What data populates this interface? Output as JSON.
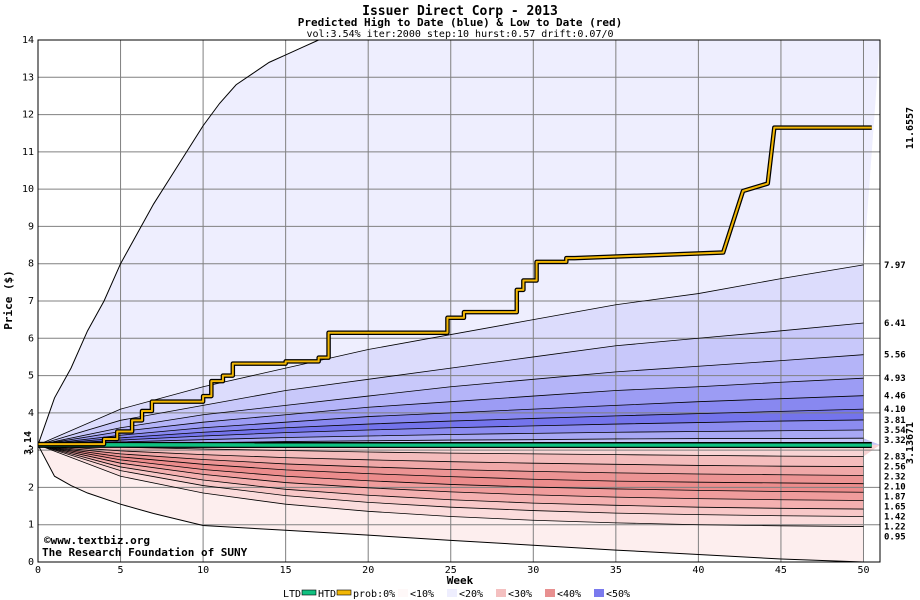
{
  "header": {
    "title": "Issuer Direct Corp - 2013",
    "subtitle": "Predicted High to Date (blue) &  Low to Date (red)",
    "params": "vol:3.54% iter:2000 step:10 hurst:0.57 drift:0.07/0"
  },
  "watermark": {
    "line1": "©www.textbiz.org",
    "line2": "The Research Foundation of SUNY"
  },
  "legend": {
    "ltd": "LTD",
    "htd": "HTD",
    "prob": "prob:0%",
    "b1": "<10%",
    "b2": "<20%",
    "b3": "<30%",
    "b4": "<40%",
    "b5": "<50%"
  },
  "colors": {
    "high_band": "#eeeefe",
    "low_band": "#fdeeee",
    "htd_line": "#f2b705",
    "ltd_line": "#10c080",
    "right_high_label": "#a07800",
    "right_low_label": "#10a070",
    "start_label": "#107010"
  },
  "chart_data": {
    "type": "area",
    "xlabel": "Week",
    "ylabel": "Price ($)",
    "xlim": [
      0,
      51
    ],
    "ylim": [
      0,
      14
    ],
    "x_ticks": [
      0,
      5,
      10,
      15,
      20,
      25,
      30,
      35,
      40,
      45,
      50
    ],
    "y_ticks": [
      0,
      1,
      2,
      3,
      4,
      5,
      6,
      7,
      8,
      9,
      10,
      11,
      12,
      13,
      14
    ],
    "grid": true,
    "start_value": "3.14",
    "htd_final": "11.6557",
    "ltd_final": "3.13671",
    "high_quantile_labels": [
      "7.97",
      "6.41",
      "5.56",
      "4.93",
      "4.46",
      "4.10",
      "3.81",
      "3.54",
      "3.32"
    ],
    "low_quantile_labels": [
      "2.83",
      "2.56",
      "2.32",
      "2.10",
      "1.87",
      "1.65",
      "1.42",
      "1.22",
      "0.95"
    ],
    "high_outer_envelope": {
      "x": [
        0,
        1,
        2,
        3,
        4,
        5,
        6,
        7,
        8,
        9,
        10,
        11,
        12,
        13,
        14,
        15,
        16,
        17
      ],
      "y": [
        3.14,
        4.4,
        5.2,
        6.2,
        7.0,
        8.0,
        8.8,
        9.6,
        10.3,
        11.0,
        11.7,
        12.3,
        12.8,
        13.1,
        13.4,
        13.6,
        13.8,
        14.0
      ]
    },
    "high_quantile_curves": [
      {
        "end": 7.97,
        "x": [
          0,
          5,
          10,
          15,
          20,
          25,
          30,
          35,
          40,
          45,
          50
        ],
        "y": [
          3.14,
          4.1,
          4.7,
          5.2,
          5.7,
          6.1,
          6.5,
          6.9,
          7.2,
          7.6,
          7.97
        ]
      },
      {
        "end": 6.41,
        "x": [
          0,
          5,
          10,
          15,
          20,
          25,
          30,
          35,
          40,
          45,
          50
        ],
        "y": [
          3.14,
          3.8,
          4.2,
          4.6,
          4.9,
          5.2,
          5.5,
          5.8,
          6.0,
          6.2,
          6.41
        ]
      },
      {
        "end": 5.56,
        "x": [
          0,
          5,
          10,
          15,
          20,
          25,
          30,
          35,
          40,
          45,
          50
        ],
        "y": [
          3.14,
          3.6,
          3.95,
          4.2,
          4.45,
          4.7,
          4.9,
          5.1,
          5.25,
          5.4,
          5.56
        ]
      },
      {
        "end": 4.93,
        "x": [
          0,
          5,
          10,
          15,
          20,
          25,
          30,
          35,
          40,
          45,
          50
        ],
        "y": [
          3.14,
          3.5,
          3.75,
          3.95,
          4.15,
          4.3,
          4.45,
          4.6,
          4.7,
          4.82,
          4.93
        ]
      },
      {
        "end": 4.46,
        "x": [
          0,
          5,
          10,
          15,
          20,
          25,
          30,
          35,
          40,
          45,
          50
        ],
        "y": [
          3.14,
          3.4,
          3.6,
          3.75,
          3.9,
          4.0,
          4.1,
          4.2,
          4.3,
          4.38,
          4.46
        ]
      },
      {
        "end": 4.1,
        "x": [
          0,
          5,
          10,
          15,
          20,
          25,
          30,
          35,
          40,
          45,
          50
        ],
        "y": [
          3.14,
          3.33,
          3.48,
          3.6,
          3.7,
          3.78,
          3.85,
          3.92,
          3.98,
          4.04,
          4.1
        ]
      },
      {
        "end": 3.81,
        "x": [
          0,
          5,
          10,
          15,
          20,
          25,
          30,
          35,
          40,
          45,
          50
        ],
        "y": [
          3.14,
          3.27,
          3.38,
          3.47,
          3.54,
          3.6,
          3.65,
          3.7,
          3.74,
          3.78,
          3.81
        ]
      },
      {
        "end": 3.54,
        "x": [
          0,
          5,
          10,
          15,
          20,
          25,
          30,
          35,
          40,
          45,
          50
        ],
        "y": [
          3.14,
          3.22,
          3.28,
          3.34,
          3.38,
          3.42,
          3.45,
          3.48,
          3.5,
          3.52,
          3.54
        ]
      },
      {
        "end": 3.32,
        "x": [
          0,
          5,
          10,
          15,
          20,
          25,
          30,
          35,
          40,
          45,
          50
        ],
        "y": [
          3.14,
          3.17,
          3.2,
          3.23,
          3.25,
          3.27,
          3.28,
          3.3,
          3.31,
          3.31,
          3.32
        ]
      }
    ],
    "low_quantile_curves": [
      {
        "end": 2.83,
        "x": [
          0,
          5,
          10,
          15,
          20,
          25,
          30,
          35,
          40,
          45,
          50
        ],
        "y": [
          3.14,
          3.08,
          3.03,
          2.99,
          2.95,
          2.92,
          2.9,
          2.88,
          2.86,
          2.84,
          2.83
        ]
      },
      {
        "end": 2.56,
        "x": [
          0,
          5,
          10,
          15,
          20,
          25,
          30,
          35,
          40,
          45,
          50
        ],
        "y": [
          3.14,
          2.98,
          2.88,
          2.8,
          2.74,
          2.69,
          2.65,
          2.62,
          2.59,
          2.57,
          2.56
        ]
      },
      {
        "end": 2.32,
        "x": [
          0,
          5,
          10,
          15,
          20,
          25,
          30,
          35,
          40,
          45,
          50
        ],
        "y": [
          3.14,
          2.9,
          2.75,
          2.63,
          2.55,
          2.48,
          2.43,
          2.39,
          2.36,
          2.34,
          2.32
        ]
      },
      {
        "end": 2.1,
        "x": [
          0,
          5,
          10,
          15,
          20,
          25,
          30,
          35,
          40,
          45,
          50
        ],
        "y": [
          3.14,
          2.82,
          2.62,
          2.47,
          2.37,
          2.29,
          2.22,
          2.17,
          2.14,
          2.12,
          2.1
        ]
      },
      {
        "end": 1.87,
        "x": [
          0,
          5,
          10,
          15,
          20,
          25,
          30,
          35,
          40,
          45,
          50
        ],
        "y": [
          3.14,
          2.74,
          2.48,
          2.3,
          2.18,
          2.08,
          2.01,
          1.96,
          1.92,
          1.89,
          1.87
        ]
      },
      {
        "end": 1.65,
        "x": [
          0,
          5,
          10,
          15,
          20,
          25,
          30,
          35,
          40,
          45,
          50
        ],
        "y": [
          3.14,
          2.65,
          2.35,
          2.13,
          1.99,
          1.88,
          1.8,
          1.74,
          1.7,
          1.67,
          1.65
        ]
      },
      {
        "end": 1.42,
        "x": [
          0,
          5,
          10,
          15,
          20,
          25,
          30,
          35,
          40,
          45,
          50
        ],
        "y": [
          3.14,
          2.55,
          2.2,
          1.95,
          1.79,
          1.67,
          1.58,
          1.52,
          1.47,
          1.44,
          1.42
        ]
      },
      {
        "end": 1.22,
        "x": [
          0,
          5,
          10,
          15,
          20,
          25,
          30,
          35,
          40,
          45,
          50
        ],
        "y": [
          3.14,
          2.45,
          2.05,
          1.78,
          1.6,
          1.47,
          1.38,
          1.31,
          1.27,
          1.24,
          1.22
        ]
      },
      {
        "end": 0.95,
        "x": [
          0,
          5,
          10,
          15,
          20,
          25,
          30,
          35,
          40,
          45,
          50
        ],
        "y": [
          3.14,
          2.3,
          1.85,
          1.55,
          1.36,
          1.22,
          1.12,
          1.05,
          1.0,
          0.97,
          0.95
        ]
      }
    ],
    "low_outer_envelope": {
      "x": [
        0,
        1,
        2,
        3,
        5,
        7,
        10,
        15,
        20,
        25,
        30,
        35,
        40,
        45,
        50
      ],
      "y": [
        3.14,
        2.3,
        2.05,
        1.85,
        1.55,
        1.3,
        0.98,
        0.85,
        0.72,
        0.58,
        0.45,
        0.32,
        0.2,
        0.08,
        0
      ]
    },
    "series": [
      {
        "name": "HTD",
        "x": [
          0,
          4,
          4,
          4.8,
          4.8,
          5.7,
          5.7,
          6.3,
          6.3,
          6.9,
          6.9,
          10.0,
          10.0,
          10.5,
          10.5,
          11.2,
          11.2,
          11.8,
          11.8,
          15.0,
          15.0,
          17.0,
          17.0,
          17.6,
          17.6,
          24.8,
          24.8,
          25.8,
          25.8,
          29.0,
          29.0,
          29.4,
          29.4,
          30.2,
          30.2,
          32.0,
          32.0,
          32.5,
          32.5,
          41.5,
          41.5,
          42.3,
          42.3,
          42.7,
          42.7,
          44.2,
          44.2,
          44.6,
          44.6,
          50.5
        ],
        "y": [
          3.16,
          3.16,
          3.3,
          3.3,
          3.5,
          3.5,
          3.8,
          3.8,
          4.05,
          4.05,
          4.3,
          4.3,
          4.45,
          4.45,
          4.85,
          4.85,
          5.0,
          5.0,
          5.32,
          5.32,
          5.38,
          5.38,
          5.48,
          5.48,
          6.15,
          6.15,
          6.55,
          6.55,
          6.7,
          6.7,
          7.3,
          7.3,
          7.55,
          7.55,
          8.05,
          8.05,
          8.15,
          8.15,
          8.15,
          8.3,
          8.3,
          9.4,
          9.4,
          9.95,
          9.95,
          10.15,
          10.15,
          11.65,
          11.65,
          11.65
        ]
      },
      {
        "name": "LTD",
        "x": [
          0,
          50.5
        ],
        "y": [
          3.14,
          3.13671
        ]
      }
    ]
  }
}
